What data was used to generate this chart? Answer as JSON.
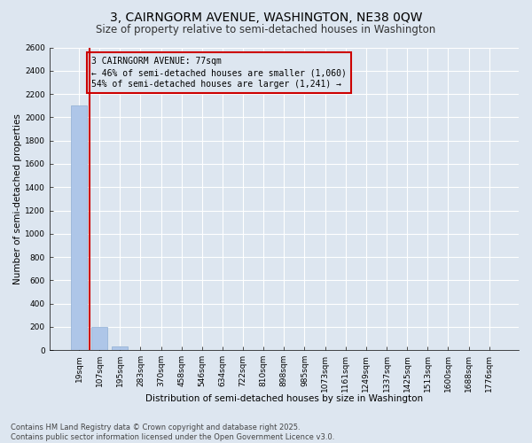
{
  "title1": "3, CAIRNGORM AVENUE, WASHINGTON, NE38 0QW",
  "title2": "Size of property relative to semi-detached houses in Washington",
  "xlabel": "Distribution of semi-detached houses by size in Washington",
  "ylabel": "Number of semi-detached properties",
  "categories": [
    "19sqm",
    "107sqm",
    "195sqm",
    "283sqm",
    "370sqm",
    "458sqm",
    "546sqm",
    "634sqm",
    "722sqm",
    "810sqm",
    "898sqm",
    "985sqm",
    "1073sqm",
    "1161sqm",
    "1249sqm",
    "1337sqm",
    "1425sqm",
    "1513sqm",
    "1600sqm",
    "1688sqm",
    "1776sqm"
  ],
  "values": [
    2100,
    200,
    30,
    4,
    2,
    1,
    1,
    1,
    0,
    0,
    0,
    0,
    0,
    0,
    0,
    0,
    0,
    0,
    0,
    0,
    0
  ],
  "bar_color": "#aec6e8",
  "bar_edge_color": "#8fafd4",
  "bg_color": "#dde6f0",
  "grid_color": "#ffffff",
  "vline_color": "#cc0000",
  "vline_pos": 0.5,
  "annotation_text": "3 CAIRNGORM AVENUE: 77sqm\n← 46% of semi-detached houses are smaller (1,060)\n54% of semi-detached houses are larger (1,241) →",
  "annotation_box_color": "#cc0000",
  "annotation_text_color": "#000000",
  "ylim": [
    0,
    2600
  ],
  "yticks": [
    0,
    200,
    400,
    600,
    800,
    1000,
    1200,
    1400,
    1600,
    1800,
    2000,
    2200,
    2400,
    2600
  ],
  "footnote": "Contains HM Land Registry data © Crown copyright and database right 2025.\nContains public sector information licensed under the Open Government Licence v3.0.",
  "title1_fontsize": 10,
  "title2_fontsize": 8.5,
  "xlabel_fontsize": 7.5,
  "ylabel_fontsize": 7.5,
  "tick_fontsize": 6.5,
  "annotation_fontsize": 7,
  "footnote_fontsize": 6
}
